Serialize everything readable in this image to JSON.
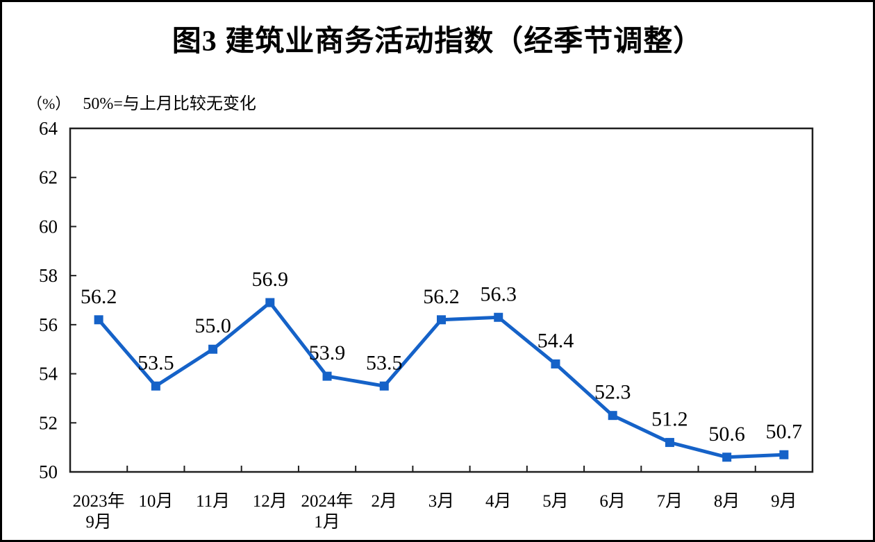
{
  "title": "图3  建筑业商务活动指数（经季节调整）",
  "subtitle": {
    "unit_label": "（%）",
    "note": "50%=与上月比较无变化"
  },
  "colors": {
    "line": "#1562C8",
    "marker": "#1562C8",
    "axis": "#1f1f1f",
    "text": "#000000",
    "background": "#ffffff"
  },
  "chart_data": {
    "type": "line",
    "title": "图3  建筑业商务活动指数（经季节调整）",
    "categories": [
      [
        "2023年",
        "9月"
      ],
      [
        "10月"
      ],
      [
        "11月"
      ],
      [
        "12月"
      ],
      [
        "2024年",
        "1月"
      ],
      [
        "2月"
      ],
      [
        "3月"
      ],
      [
        "4月"
      ],
      [
        "5月"
      ],
      [
        "6月"
      ],
      [
        "7月"
      ],
      [
        "8月"
      ],
      [
        "9月"
      ]
    ],
    "values": [
      56.2,
      53.5,
      55.0,
      56.9,
      53.9,
      53.5,
      56.2,
      56.3,
      54.4,
      52.3,
      51.2,
      50.6,
      50.7
    ],
    "ylabel": "（%）",
    "xlabel": "",
    "ylim": [
      50,
      64
    ],
    "ytick_step": 2,
    "grid": false,
    "legend_position": "none",
    "marker_style": "square",
    "data_labels_decimals": 1
  }
}
